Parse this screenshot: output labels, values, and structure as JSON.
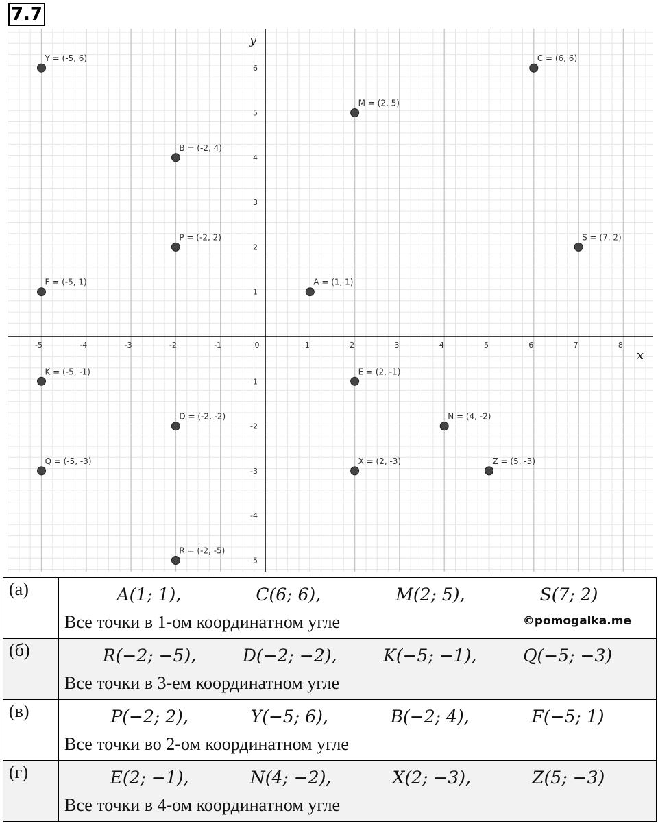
{
  "problem_number": "7.7",
  "chart_data": {
    "type": "scatter",
    "xlabel": "x",
    "ylabel": "y",
    "xlim": [
      -5.75,
      8.6
    ],
    "ylim": [
      -5.45,
      6.85
    ],
    "x_ticks": [
      "-5",
      "-4",
      "-3",
      "-2",
      "-1",
      "0",
      "1",
      "2",
      "3",
      "4",
      "5",
      "6",
      "7",
      "8"
    ],
    "y_ticks": [
      "-5",
      "-4",
      "-3",
      "-2",
      "-1",
      "1",
      "2",
      "3",
      "4",
      "5",
      "6"
    ],
    "grid": true,
    "points": [
      {
        "name": "Y",
        "x": -5,
        "y": 6,
        "label": "Y = (-5, 6)"
      },
      {
        "name": "C",
        "x": 6,
        "y": 6,
        "label": "C = (6, 6)"
      },
      {
        "name": "M",
        "x": 2,
        "y": 5,
        "label": "M = (2, 5)"
      },
      {
        "name": "B",
        "x": -2,
        "y": 4,
        "label": "B = (-2, 4)"
      },
      {
        "name": "P",
        "x": -2,
        "y": 2,
        "label": "P = (-2, 2)"
      },
      {
        "name": "S",
        "x": 7,
        "y": 2,
        "label": "S = (7, 2)"
      },
      {
        "name": "F",
        "x": -5,
        "y": 1,
        "label": "F = (-5, 1)"
      },
      {
        "name": "A",
        "x": 1,
        "y": 1,
        "label": "A = (1, 1)"
      },
      {
        "name": "K",
        "x": -5,
        "y": -1,
        "label": "K = (-5, -1)"
      },
      {
        "name": "E",
        "x": 2,
        "y": -1,
        "label": "E = (2, -1)"
      },
      {
        "name": "D",
        "x": -2,
        "y": -2,
        "label": "D = (-2, -2)"
      },
      {
        "name": "N",
        "x": 4,
        "y": -2,
        "label": "N = (4, -2)"
      },
      {
        "name": "Q",
        "x": -5,
        "y": -3,
        "label": "Q = (-5, -3)"
      },
      {
        "name": "X",
        "x": 2,
        "y": -3,
        "label": "X = (2, -3)"
      },
      {
        "name": "Z",
        "x": 5,
        "y": -3,
        "label": "Z = (5, -3)"
      },
      {
        "name": "R",
        "x": -2,
        "y": -5,
        "label": "R = (-2, -5)"
      }
    ],
    "colors": {
      "point": "#444444",
      "major_grid": "#c8c8c8",
      "minor_grid": "#e6e6e6",
      "axis": "#000000"
    }
  },
  "answers": [
    {
      "label": "(а)",
      "points": [
        "A(1; 1),",
        "C(6; 6),",
        "M(2; 5),",
        "S(7; 2)"
      ],
      "description": "Все точки в 1-ом координатном угле",
      "watermark": "©pomogalka.me"
    },
    {
      "label": "(б)",
      "points": [
        "R(−2; −5),",
        "D(−2; −2),",
        "K(−5; −1),",
        "Q(−5; −3)"
      ],
      "description": "Все точки в 3-ем координатном угле"
    },
    {
      "label": "(в)",
      "points": [
        "P(−2; 2),",
        "Y(−5; 6),",
        "B(−2; 4),",
        "F(−5; 1)"
      ],
      "description": "Все точки во 2-ом координатном угле"
    },
    {
      "label": "(г)",
      "points": [
        "E(2; −1),",
        "N(4; −2),",
        "X(2; −3),",
        "Z(5; −3)"
      ],
      "description": "Все точки в 4-ом координатном угле"
    }
  ]
}
